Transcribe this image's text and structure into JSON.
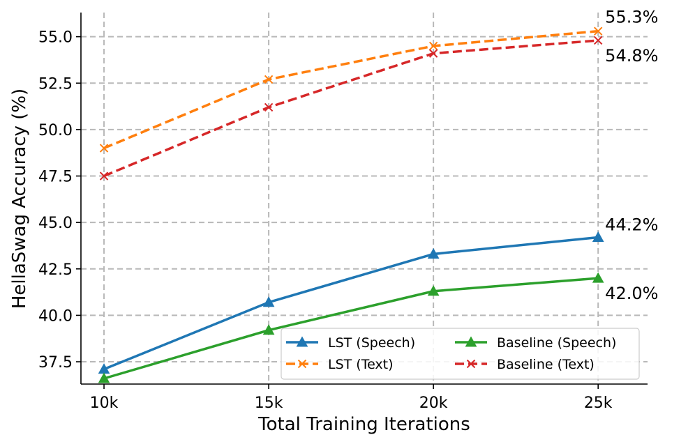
{
  "chart_data": {
    "type": "line",
    "title": "",
    "xlabel": "Total Training Iterations",
    "ylabel": "HellaSwag Accuracy (%)",
    "categories": [
      "10k",
      "15k",
      "20k",
      "25k"
    ],
    "x": [
      10,
      15,
      20,
      25
    ],
    "xlim": [
      9.3,
      26.5
    ],
    "ylim": [
      36.3,
      56.3
    ],
    "yticks": [
      "37.5",
      "40.0",
      "42.5",
      "45.0",
      "47.5",
      "50.0",
      "52.5",
      "55.0"
    ],
    "ytick_values": [
      37.5,
      40.0,
      42.5,
      45.0,
      47.5,
      50.0,
      52.5,
      55.0
    ],
    "grid": true,
    "legend_position": "bottom-right",
    "series": [
      {
        "name": "LST (Speech)",
        "values": [
          37.1,
          40.7,
          43.3,
          44.2
        ],
        "color": "#1f77b4",
        "linestyle": "solid",
        "marker": "triangle"
      },
      {
        "name": "LST (Text)",
        "values": [
          49.0,
          52.7,
          54.5,
          55.3
        ],
        "color": "#ff7f0e",
        "linestyle": "dashed",
        "marker": "x"
      },
      {
        "name": "Baseline (Speech)",
        "values": [
          36.6,
          39.2,
          41.3,
          42.0
        ],
        "color": "#2ca02c",
        "linestyle": "solid",
        "marker": "triangle"
      },
      {
        "name": "Baseline (Text)",
        "values": [
          47.5,
          51.2,
          54.1,
          54.8
        ],
        "color": "#d62728",
        "linestyle": "dashed",
        "marker": "x"
      }
    ],
    "annotations": [
      {
        "text": "55.3%",
        "series": "LST (Text)"
      },
      {
        "text": "54.8%",
        "series": "Baseline (Text)"
      },
      {
        "text": "44.2%",
        "series": "LST (Speech)"
      },
      {
        "text": "42.0%",
        "series": "Baseline (Speech)"
      }
    ]
  }
}
